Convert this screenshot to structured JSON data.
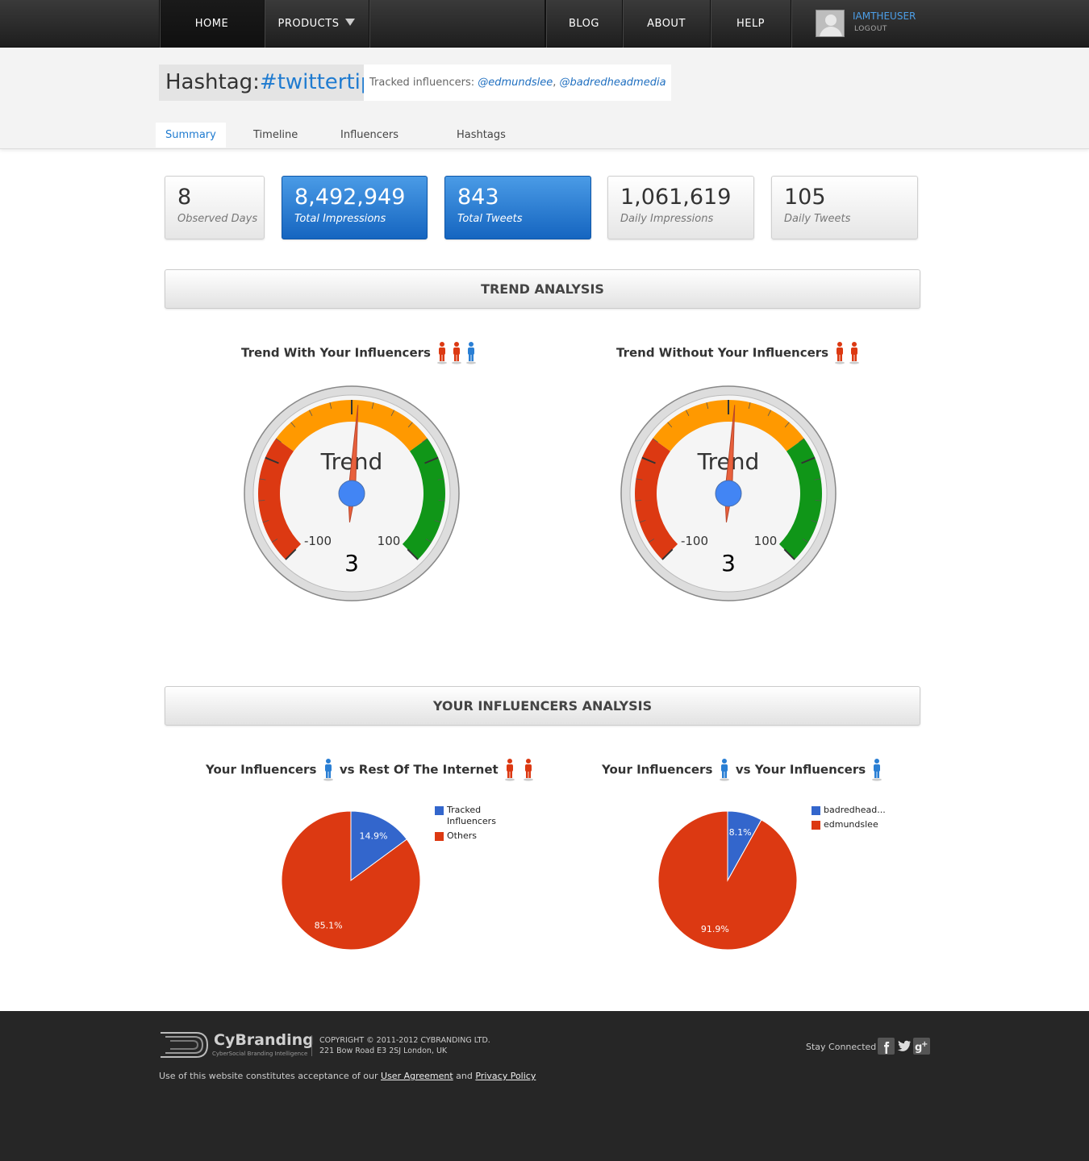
{
  "nav": {
    "home": "HOME",
    "products": "PRODUCTS",
    "blog": "BLOG",
    "about": "ABOUT",
    "help": "HELP",
    "username": "IAMTHEUSER",
    "logout": "LOGOUT"
  },
  "header": {
    "title_prefix": "Hashtag:",
    "title_tag": "#twittertips",
    "tracked_label": "Tracked influencers: ",
    "tracked_1": "@edmundslee",
    "tracked_sep": ", ",
    "tracked_2": "@badredheadmedia"
  },
  "tabs": [
    "Summary",
    "Timeline",
    "Influencers",
    "Hashtags"
  ],
  "stats": [
    {
      "value": "8",
      "label": "Observed Days",
      "highlight": false
    },
    {
      "value": "8,492,949",
      "label": "Total Impressions",
      "highlight": true
    },
    {
      "value": "843",
      "label": "Total Tweets",
      "highlight": true
    },
    {
      "value": "1,061,619",
      "label": "Daily Impressions",
      "highlight": false
    },
    {
      "value": "105",
      "label": "Daily Tweets",
      "highlight": false
    }
  ],
  "sections": {
    "trend": "TREND ANALYSIS",
    "influencers": "YOUR INFLUENCERS ANALYSIS"
  },
  "gauges": [
    {
      "title": "Trend With Your Influencers",
      "label": "Trend",
      "value": 3,
      "value_text": "3",
      "min": -100,
      "max": 100,
      "min_text": "-100",
      "max_text": "100",
      "people": [
        "red",
        "red",
        "blue"
      ]
    },
    {
      "title": "Trend Without Your Influencers",
      "label": "Trend",
      "value": 3,
      "value_text": "3",
      "min": -100,
      "max": 100,
      "min_text": "-100",
      "max_text": "100",
      "people": [
        "red",
        "red"
      ]
    }
  ],
  "pie_titles": [
    {
      "part1": "Your Influencers",
      "part2": "vs Rest Of The Internet"
    },
    {
      "part1": "Your Influencers",
      "part2": "vs Your Influencers"
    }
  ],
  "chart_data": [
    {
      "type": "pie",
      "labels": [
        "Tracked Influencers",
        "Others"
      ],
      "values": [
        14.9,
        85.1
      ],
      "value_labels": [
        "14.9%",
        "85.1%"
      ],
      "colors": [
        "#3366cc",
        "#dc3912"
      ],
      "legend": "right"
    },
    {
      "type": "pie",
      "labels": [
        "badredhead...",
        "edmundslee"
      ],
      "values": [
        8.1,
        91.9
      ],
      "value_labels": [
        "8.1%",
        "91.9%"
      ],
      "colors": [
        "#3366cc",
        "#dc3912"
      ],
      "legend": "right"
    }
  ],
  "footer": {
    "logo_name": "CyBranding",
    "logo_tagline": "CyberSocial Branding Intelligence",
    "copyright": "COPYRIGHT © 2011-2012 CYBRANDING LTD.",
    "address": "221 Bow Road E3 2SJ London, UK",
    "terms_prefix": "Use of this website constitutes acceptance of our ",
    "agreement": "User Agreement",
    "and": " and ",
    "privacy": "Privacy Policy",
    "stay_connected": "Stay Connected"
  },
  "colors": {
    "accent": "#1f7bd0",
    "gauge_red": "#dc3912",
    "gauge_orange": "#ff9900",
    "gauge_green": "#109618",
    "needle": "#e8603c",
    "hub": "#4285f4"
  }
}
